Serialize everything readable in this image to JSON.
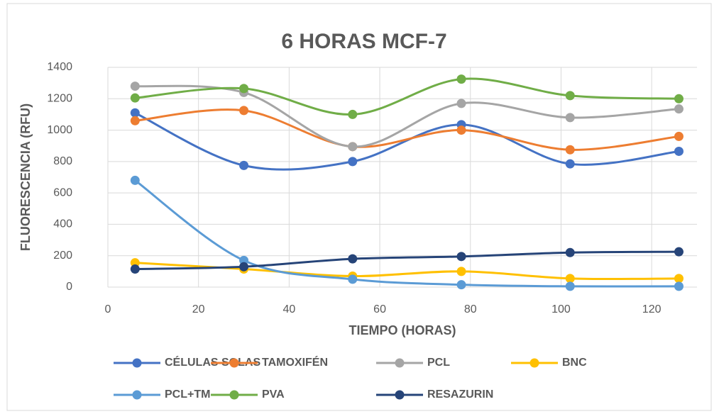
{
  "chart_data": {
    "type": "line",
    "title": "6 HORAS MCF-7",
    "xlabel": "TIEMPO (HORAS)",
    "ylabel": "FLUORESCENCIA (RFU)",
    "x": [
      6,
      30,
      54,
      78,
      102,
      126
    ],
    "series": [
      {
        "name": "CÉLULAS SOLAS",
        "color": "#4472c4",
        "values": [
          1110,
          775,
          800,
          1035,
          785,
          865
        ]
      },
      {
        "name": "TAMOXIFÉN",
        "color": "#ed7d31",
        "values": [
          1060,
          1125,
          895,
          1000,
          875,
          960
        ]
      },
      {
        "name": "PCL",
        "color": "#a5a5a5",
        "values": [
          1280,
          1240,
          895,
          1170,
          1080,
          1135
        ]
      },
      {
        "name": "BNC",
        "color": "#ffc000",
        "values": [
          155,
          115,
          70,
          100,
          55,
          55
        ]
      },
      {
        "name": "PCL+TM",
        "color": "#5b9bd5",
        "values": [
          680,
          170,
          50,
          15,
          5,
          5
        ]
      },
      {
        "name": "PVA",
        "color": "#70ad47",
        "values": [
          1205,
          1265,
          1100,
          1325,
          1220,
          1200
        ]
      },
      {
        "name": "RESAZURIN",
        "color": "#264478",
        "values": [
          115,
          130,
          180,
          195,
          220,
          225
        ]
      }
    ],
    "xlim": [
      0,
      130
    ],
    "xticks": [
      0,
      20,
      40,
      60,
      80,
      100,
      120
    ],
    "ylim": [
      0,
      1400
    ],
    "yticks": [
      0,
      200,
      400,
      600,
      800,
      1000,
      1200,
      1400
    ],
    "grid": true,
    "smooth": true,
    "legend": "bottom"
  }
}
